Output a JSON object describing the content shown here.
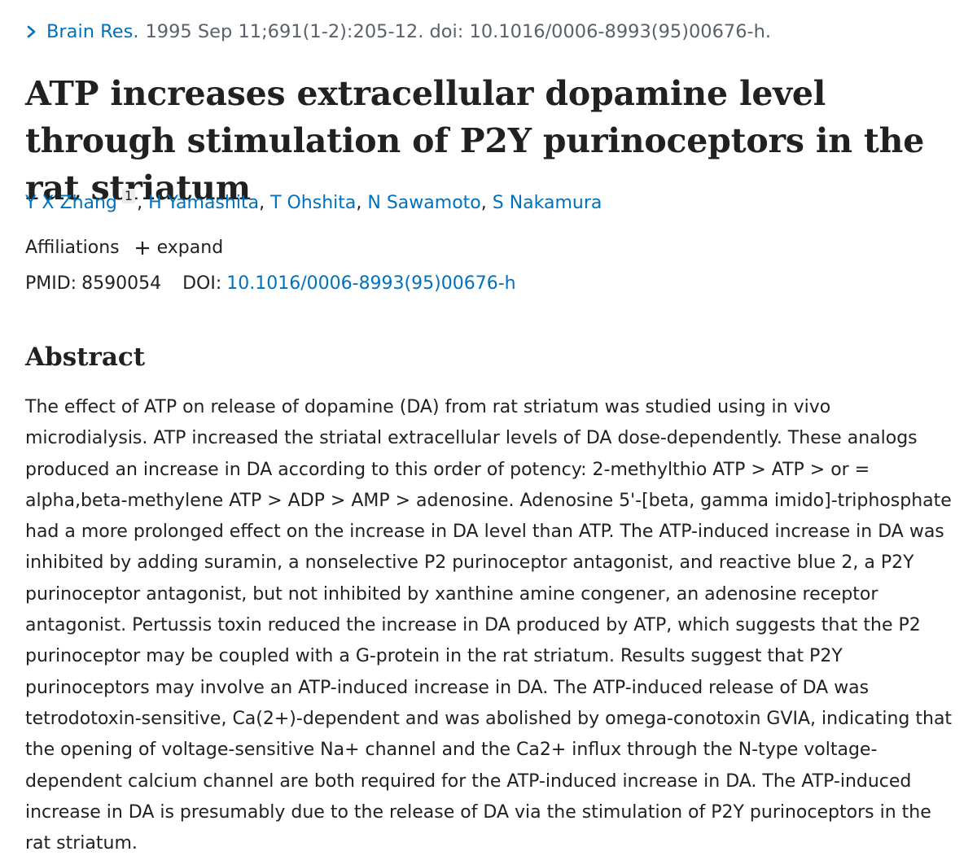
{
  "citation": {
    "journal": "Brain Res.",
    "details": "1995 Sep 11;691(1-2):205-12. doi: 10.1016/0006-8993(95)00676-h."
  },
  "title": "ATP increases extracellular dopamine level through stimulation of P2Y purinoceptors in the rat striatum",
  "authors": {
    "list": [
      "Y X Zhang",
      "H Yamashita",
      "T Ohshita",
      "N Sawamoto",
      "S Nakamura"
    ],
    "first_affiliation_ref": "1"
  },
  "affiliations": {
    "label": "Affiliations",
    "expand_label": "expand"
  },
  "identifiers": {
    "pmid_label": "PMID:",
    "pmid": "8590054",
    "doi_label": "DOI:",
    "doi": "10.1016/0006-8993(95)00676-h"
  },
  "abstract": {
    "heading": "Abstract",
    "text": "The effect of ATP on release of dopamine (DA) from rat striatum was studied using in vivo microdialysis. ATP increased the striatal extracellular levels of DA dose-dependently. These analogs produced an increase in DA according to this order of potency: 2-methylthio ATP > ATP > or = alpha,beta-methylene ATP > ADP > AMP > adenosine. Adenosine 5'-[beta, gamma imido]-triphosphate had a more prolonged effect on the increase in DA level than ATP. The ATP-induced increase in DA was inhibited by adding suramin, a nonselective P2 purinoceptor antagonist, and reactive blue 2, a P2Y purinoceptor antagonist, but not inhibited by xanthine amine congener, an adenosine receptor antagonist. Pertussis toxin reduced the increase in DA produced by ATP, which suggests that the P2 purinoceptor may be coupled with a G-protein in the rat striatum. Results suggest that P2Y purinoceptors may involve an ATP-induced increase in DA. The ATP-induced release of DA was tetrodotoxin-sensitive, Ca(2+)-dependent and was abolished by omega-conotoxin GVIA, indicating that the opening of voltage-sensitive Na+ channel and the Ca2+ influx through the N-type voltage-dependent calcium channel are both required for the ATP-induced increase in DA. The ATP-induced increase in DA is presumably due to the release of DA via the stimulation of P2Y purinoceptors in the rat striatum."
  },
  "colors": {
    "link": "#0071bc",
    "text": "#212121",
    "muted": "#5b616b",
    "sup_bg": "#e9ecef"
  },
  "icons": {
    "citation_toggle": "chevron-right-icon",
    "expand": "plus-icon"
  }
}
